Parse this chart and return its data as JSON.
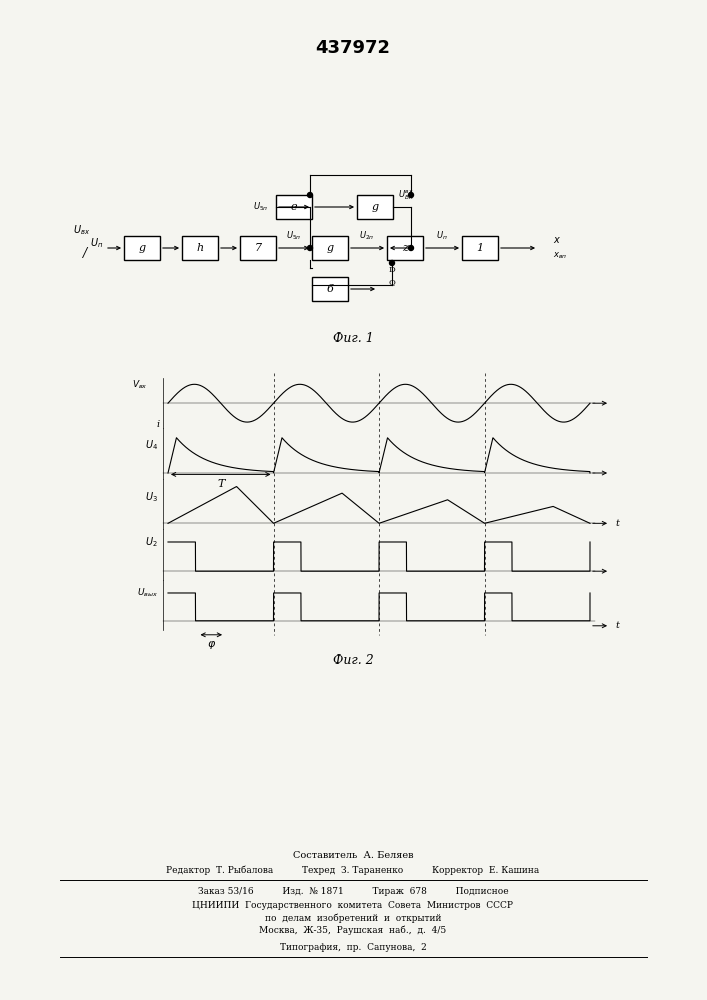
{
  "title": "437972",
  "fig1_caption": "Фиг. 1",
  "fig2_caption": "Фиг. 2",
  "bg_color": "#f5f5f0",
  "line_color": "#000000",
  "footer_lines": [
    "Составитель  А. Беляев",
    "Редактор  Т. Рыбалова          Техред  З. Тараненко          Корректор  Е. Кашина",
    "Заказ 53/16          Изд.  № 1871          Тираж  678          Подписное",
    "ЦНИИПИ  Государственного  комитета  Совета  Министров  СССР",
    "по  делам  изобретений  и  открытий",
    "Москва,  Ж-35,  Раушская  наб.,  д.  4/5",
    "Типография,  пр.  Сапунова,  2"
  ]
}
